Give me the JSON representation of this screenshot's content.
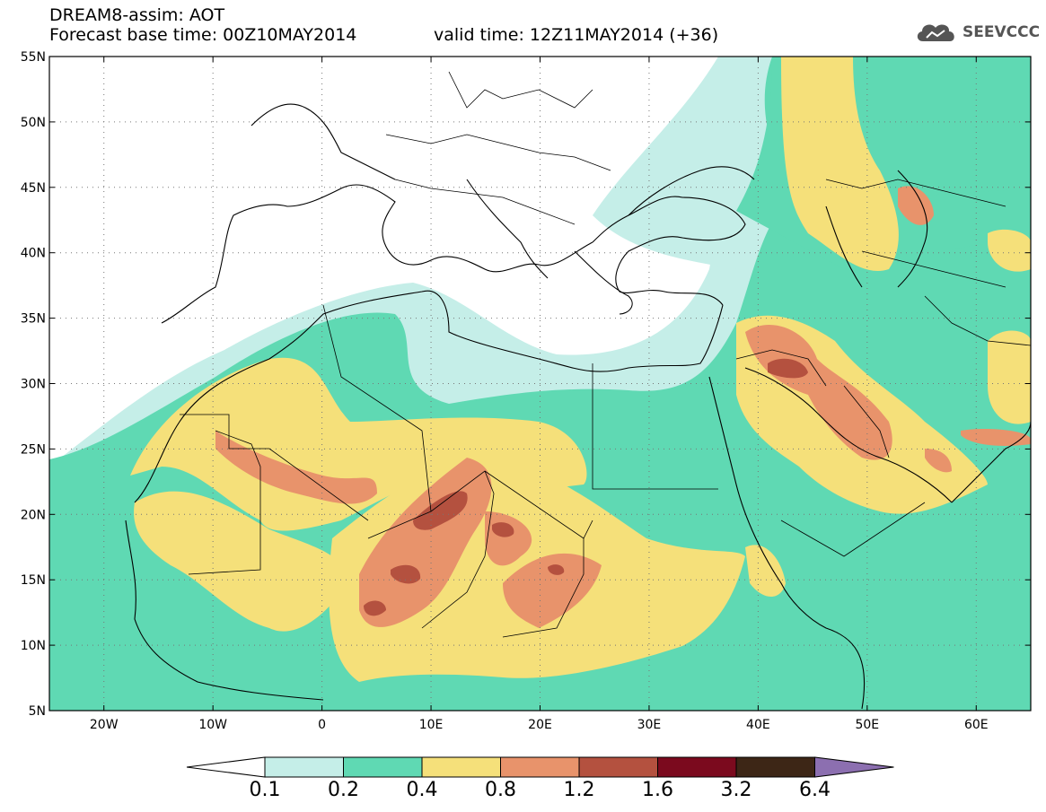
{
  "header": {
    "title": "DREAM8-assim: AOT",
    "base_time": "Forecast base time: 00Z10MAY2014",
    "valid_time": "valid time: 12Z11MAY2014 (+36)"
  },
  "logo": {
    "text": "SEEVCCC",
    "icon": "cloud-icon"
  },
  "map": {
    "lon_range": [
      -25,
      65
    ],
    "lat_range": [
      5,
      55
    ],
    "x_ticks": [
      "20W",
      "10W",
      "0",
      "10E",
      "20E",
      "30E",
      "40E",
      "50E",
      "60E"
    ],
    "y_ticks": [
      "5N",
      "10N",
      "15N",
      "20N",
      "25N",
      "30N",
      "35N",
      "40N",
      "45N",
      "50N",
      "55N"
    ],
    "grid": "dotted"
  },
  "colorbar": {
    "levels": [
      "0.1",
      "0.2",
      "0.4",
      "0.8",
      "1.2",
      "1.6",
      "3.2",
      "6.4"
    ],
    "colors": [
      "#c5eee8",
      "#5fd9b3",
      "#f5e07a",
      "#e8936b",
      "#b4513f",
      "#7b0a1e",
      "#3d2616",
      "#8c6fb0"
    ]
  }
}
